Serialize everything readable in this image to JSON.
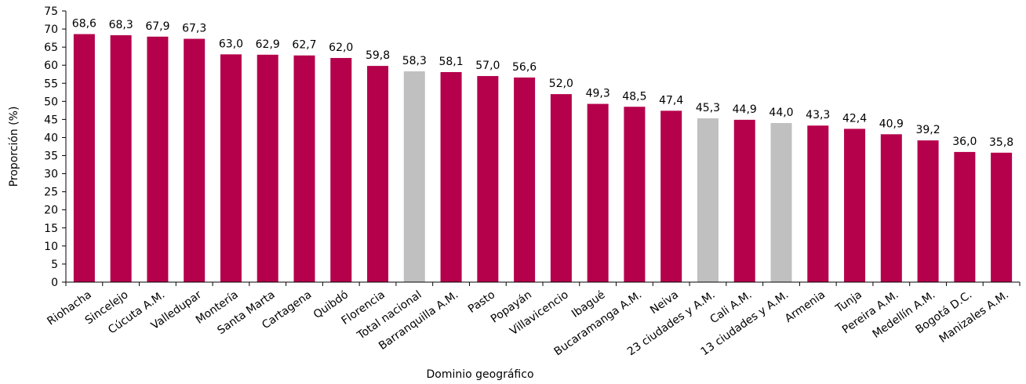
{
  "chart_data": {
    "type": "bar",
    "title": "",
    "xlabel": "Dominio geográfico",
    "ylabel": "Proporción (%)",
    "ylim": [
      0,
      75
    ],
    "yticks": [
      0,
      5,
      10,
      15,
      20,
      25,
      30,
      35,
      40,
      45,
      50,
      55,
      60,
      65,
      70,
      75
    ],
    "grid": false,
    "legend": "none",
    "categories": [
      "Riohacha",
      "Sincelejo",
      "Cúcuta A.M.",
      "Valledupar",
      "Montería",
      "Santa Marta",
      "Cartagena",
      "Quibdó",
      "Florencia",
      "Total nacional",
      "Barranquilla A.M.",
      "Pasto",
      "Popayán",
      "Villavicencio",
      "Ibagué",
      "Bucaramanga A.M.",
      "Neiva",
      "23 ciudades y A.M.",
      "Cali A.M.",
      "13 ciudades y A.M.",
      "Armenia",
      "Tunja",
      "Pereira A.M.",
      "Medellín A.M.",
      "Bogotá D.C.",
      "Manizales A.M."
    ],
    "values": [
      68.6,
      68.3,
      67.9,
      67.3,
      63.0,
      62.9,
      62.7,
      62.0,
      59.8,
      58.3,
      58.1,
      57.0,
      56.6,
      52.0,
      49.3,
      48.5,
      47.4,
      45.3,
      44.9,
      44.0,
      43.3,
      42.4,
      40.9,
      39.2,
      36.0,
      35.8
    ],
    "value_labels": [
      "68,6",
      "68,3",
      "67,9",
      "67,3",
      "63,0",
      "62,9",
      "62,7",
      "62,0",
      "59,8",
      "58,3",
      "58,1",
      "57,0",
      "56,6",
      "52,0",
      "49,3",
      "48,5",
      "47,4",
      "45,3",
      "44,9",
      "44,0",
      "43,3",
      "42,4",
      "40,9",
      "39,2",
      "36,0",
      "35,8"
    ],
    "highlighted": [
      "Total nacional",
      "23 ciudades y A.M.",
      "13 ciudades y A.M."
    ],
    "colors": {
      "bar": "#B5004B",
      "highlight": "#C0C0C0",
      "axis": "#000000"
    }
  }
}
